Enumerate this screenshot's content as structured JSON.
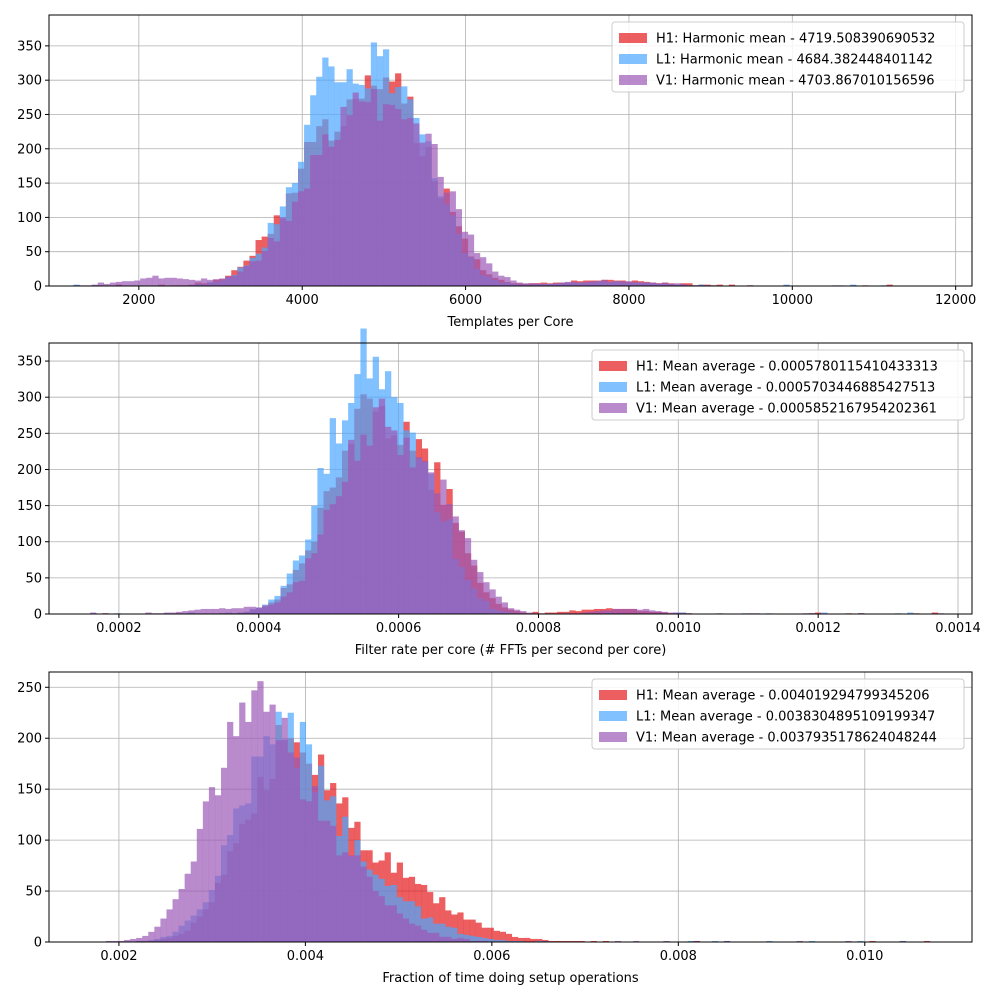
{
  "chart_data": [
    {
      "type": "histogram",
      "xlabel": "Templates per Core",
      "xlim": [
        900,
        12200
      ],
      "ylim": [
        0,
        395
      ],
      "xticks": [
        2000,
        4000,
        6000,
        8000,
        10000,
        12000
      ],
      "yticks": [
        0,
        50,
        100,
        150,
        200,
        250,
        300,
        350
      ],
      "xtick_labels": [
        "2000",
        "4000",
        "6000",
        "8000",
        "10000",
        "12000"
      ],
      "ytick_labels": [
        "0",
        "50",
        "100",
        "150",
        "200",
        "250",
        "300",
        "350"
      ],
      "grid": true,
      "legend_position": "upper right",
      "bin_range": [
        1200,
        11600
      ],
      "series": [
        {
          "name": "H1: Harmonic mean  - 4719.508390690532",
          "color": "#e41a1c",
          "peaks": [
            {
              "x": 4600,
              "h": 265,
              "w": 620
            },
            {
              "x": 5400,
              "h": 120,
              "w": 400
            },
            {
              "x": 7700,
              "h": 8,
              "w": 600
            },
            {
              "x": 3500,
              "h": 14,
              "w": 200
            }
          ],
          "tail": 2
        },
        {
          "name": "L1: Harmonic mean  - 4684.382448401142",
          "color": "#4da6ff",
          "peaks": [
            {
              "x": 4550,
              "h": 330,
              "w": 560
            },
            {
              "x": 5400,
              "h": 140,
              "w": 380
            },
            {
              "x": 7700,
              "h": 6,
              "w": 600
            }
          ],
          "tail": 2
        },
        {
          "name": "V1: Harmonic mean  - 4703.867010156596",
          "color": "#9b59b6",
          "peaks": [
            {
              "x": 4700,
              "h": 260,
              "w": 640
            },
            {
              "x": 5500,
              "h": 100,
              "w": 420
            },
            {
              "x": 2300,
              "h": 12,
              "w": 450
            },
            {
              "x": 7800,
              "h": 7,
              "w": 550
            }
          ],
          "tail": 2
        }
      ]
    },
    {
      "type": "histogram",
      "xlabel": "Filter rate per core (# FFTs per second per core)",
      "xlim": [
        0.0001,
        0.00142
      ],
      "ylim": [
        0,
        375
      ],
      "xticks": [
        0.0002,
        0.0004,
        0.0006,
        0.0008,
        0.001,
        0.0012,
        0.0014
      ],
      "yticks": [
        0,
        50,
        100,
        150,
        200,
        250,
        300,
        350
      ],
      "xtick_labels": [
        "0.0002",
        "0.0004",
        "0.0006",
        "0.0008",
        "0.0010",
        "0.0012",
        "0.0014"
      ],
      "ytick_labels": [
        "0",
        "50",
        "100",
        "150",
        "200",
        "250",
        "300",
        "350"
      ],
      "grid": true,
      "legend_position": "upper right",
      "bin_range": [
        0.00015,
        0.00138
      ],
      "series": [
        {
          "name": "H1: Mean average - 0.0005780115410433313",
          "color": "#e41a1c",
          "peaks": [
            {
              "x": 0.00056,
              "h": 270,
              "w": 6e-05
            },
            {
              "x": 0.00066,
              "h": 110,
              "w": 4e-05
            },
            {
              "x": 0.0009,
              "h": 7,
              "w": 5e-05
            }
          ],
          "tail": 2
        },
        {
          "name": "L1: Mean average - 0.0005703446885427513",
          "color": "#4da6ff",
          "peaks": [
            {
              "x": 0.00055,
              "h": 335,
              "w": 5.5e-05
            },
            {
              "x": 0.00064,
              "h": 120,
              "w": 4e-05
            }
          ],
          "tail": 2
        },
        {
          "name": "V1: Mean average - 0.0005852167954202361",
          "color": "#9b59b6",
          "peaks": [
            {
              "x": 0.00057,
              "h": 265,
              "w": 6e-05
            },
            {
              "x": 0.00067,
              "h": 100,
              "w": 4e-05
            },
            {
              "x": 0.00035,
              "h": 8,
              "w": 5e-05
            },
            {
              "x": 0.00093,
              "h": 7,
              "w": 4e-05
            }
          ],
          "tail": 2
        }
      ]
    },
    {
      "type": "histogram",
      "xlabel": "Fraction of time doing setup operations",
      "xlim": [
        0.00125,
        0.01115
      ],
      "ylim": [
        0,
        265
      ],
      "xticks": [
        0.002,
        0.004,
        0.006,
        0.008,
        0.01
      ],
      "yticks": [
        0,
        50,
        100,
        150,
        200,
        250
      ],
      "xtick_labels": [
        "0.002",
        "0.004",
        "0.006",
        "0.008",
        "0.010"
      ],
      "ytick_labels": [
        "0",
        "50",
        "100",
        "150",
        "200",
        "250"
      ],
      "grid": true,
      "legend_position": "upper right",
      "bin_range": [
        0.0016,
        0.0107
      ],
      "series": [
        {
          "name": "H1: Mean average - 0.004019294799345206",
          "color": "#e41a1c",
          "peaks": [
            {
              "x": 0.0038,
              "h": 175,
              "w": 0.00045
            },
            {
              "x": 0.0047,
              "h": 70,
              "w": 0.0007
            }
          ],
          "tail": 1
        },
        {
          "name": "L1: Mean average - 0.0038304895109199347",
          "color": "#4da6ff",
          "peaks": [
            {
              "x": 0.0037,
              "h": 180,
              "w": 0.00045
            },
            {
              "x": 0.0045,
              "h": 60,
              "w": 0.0006
            }
          ],
          "tail": 1
        },
        {
          "name": "V1: Mean average - 0.0037935178624048244",
          "color": "#9b59b6",
          "peaks": [
            {
              "x": 0.0034,
              "h": 215,
              "w": 0.00042
            },
            {
              "x": 0.0042,
              "h": 85,
              "w": 0.00055
            }
          ],
          "tail": 1
        }
      ]
    }
  ]
}
